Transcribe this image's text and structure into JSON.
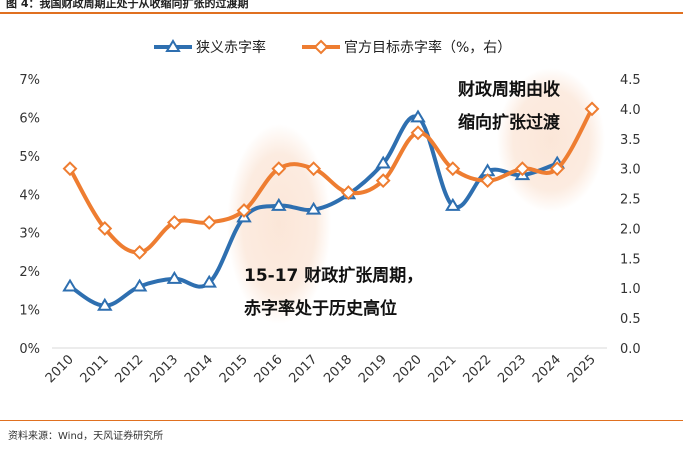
{
  "figure": {
    "title": "图 4：我国财政周期正处于从收缩向扩张的过渡期",
    "source": "资料来源：Wind，天风证券研究所"
  },
  "colors": {
    "blue": "#2e6fb0",
    "orange": "#ee7d31",
    "accent": "#e07020"
  },
  "chart_data": {
    "type": "line",
    "categories": [
      "2010",
      "2011",
      "2012",
      "2013",
      "2014",
      "2015",
      "2016",
      "2017",
      "2018",
      "2019",
      "2020",
      "2021",
      "2022",
      "2023",
      "2024",
      "2025"
    ],
    "series": [
      {
        "name": "狭义赤字率",
        "axis": "left",
        "color": "#2e6fb0",
        "marker": "triangle",
        "values": [
          1.6,
          1.1,
          1.6,
          1.8,
          1.7,
          3.4,
          3.7,
          3.6,
          4.0,
          4.8,
          6.0,
          3.7,
          4.6,
          4.5,
          4.8,
          null
        ]
      },
      {
        "name": "官方目标赤字率（%，右）",
        "axis": "right",
        "color": "#ee7d31",
        "marker": "diamond",
        "values": [
          3.0,
          2.0,
          1.6,
          2.1,
          2.1,
          2.3,
          3.0,
          3.0,
          2.6,
          2.8,
          3.6,
          3.0,
          2.8,
          3.0,
          3.0,
          4.0
        ]
      }
    ],
    "left_axis": {
      "min": 0,
      "max": 7,
      "ticks": [
        "0%",
        "1%",
        "2%",
        "3%",
        "4%",
        "5%",
        "6%",
        "7%"
      ]
    },
    "right_axis": {
      "min": 0,
      "max": 4.5,
      "ticks": [
        "0.0",
        "0.5",
        "1.0",
        "1.5",
        "2.0",
        "2.5",
        "3.0",
        "3.5",
        "4.0",
        "4.5"
      ]
    },
    "legend_position": "top",
    "annotations": {
      "expansion_line1": "15-17 财政扩张周期，",
      "expansion_line2": "赤字率处于历史高位",
      "transition_line1": "财政周期由收",
      "transition_line2": "缩向扩张过渡"
    },
    "grid": false
  }
}
